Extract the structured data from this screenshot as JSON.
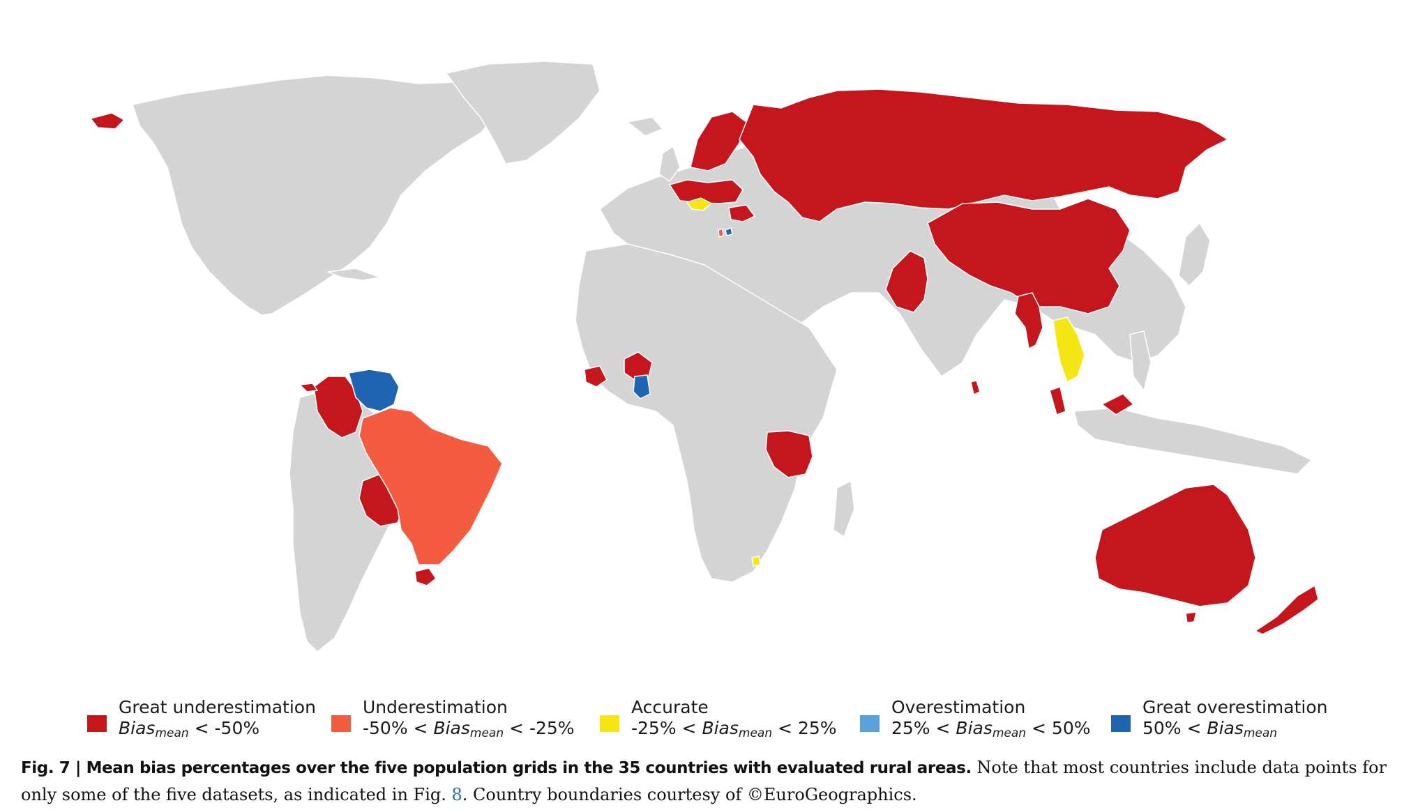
{
  "map": {
    "colors": {
      "land": "#d4d4d4",
      "great_underestimation": "#c4161c",
      "underestimation": "#f35c40",
      "accurate": "#f5e616",
      "overestimation": "#5aa2d8",
      "great_overestimation": "#1f64b0"
    }
  },
  "legend": {
    "items": [
      {
        "label": "Great underestimation",
        "range_pre": "",
        "range_mid": "Bias",
        "range_sub": "mean",
        "range_post": " < -50%",
        "color": "#c4161c"
      },
      {
        "label": "Underestimation",
        "range_pre": "-50% < ",
        "range_mid": "Bias",
        "range_sub": "mean",
        "range_post": " < -25%",
        "color": "#f35c40"
      },
      {
        "label": "Accurate",
        "range_pre": "-25% < ",
        "range_mid": "Bias",
        "range_sub": "mean",
        "range_post": " < 25%",
        "color": "#f5e616"
      },
      {
        "label": "Overestimation",
        "range_pre": "25% < ",
        "range_mid": "Bias",
        "range_sub": "mean",
        "range_post": " < 50%",
        "color": "#5aa2d8"
      },
      {
        "label": "Great overestimation",
        "range_pre": "50% < ",
        "range_mid": "Bias",
        "range_sub": "mean",
        "range_post": "",
        "color": "#1f64b0"
      }
    ]
  },
  "caption": {
    "fig": "Fig. 7 | ",
    "bold": "Mean bias percentages over the five population grids in the 35 countries with evaluated rural areas.",
    "text1": " Note that most countries include data points for only some of the five datasets, as indicated in Fig. ",
    "link": "8",
    "text2": ". Country boundaries courtesy of ©EuroGeographics."
  }
}
